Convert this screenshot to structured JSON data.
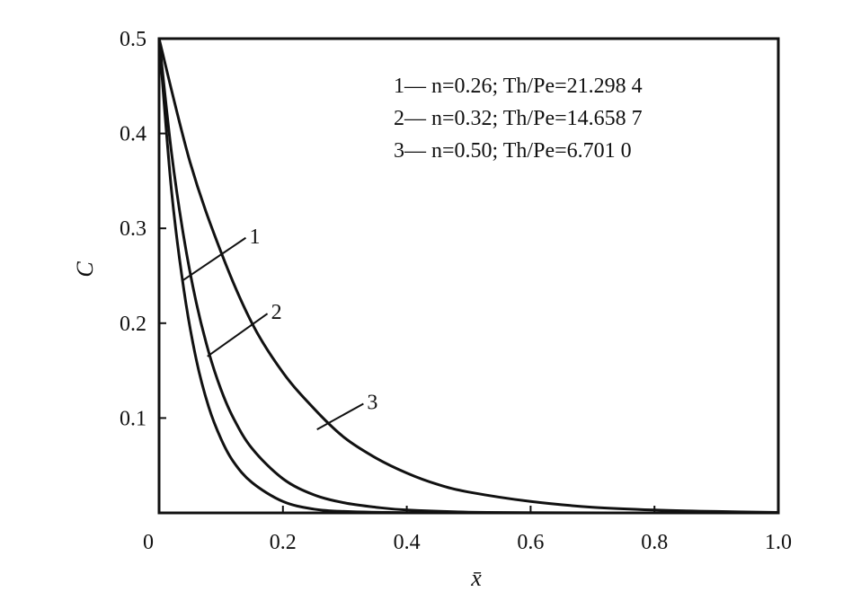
{
  "chart_data": {
    "type": "line",
    "xlabel": "x̄",
    "ylabel": "C",
    "xlim": [
      0,
      1.0
    ],
    "ylim": [
      0,
      0.5
    ],
    "xticks": [
      "0",
      "0.2",
      "0.4",
      "0.6",
      "0.8",
      "1.0"
    ],
    "yticks": [
      "0.1",
      "0.2",
      "0.3",
      "0.4",
      "0.5"
    ],
    "grid": false,
    "legend_position": "top-right",
    "legend": [
      "1— n=0.26; Th/Pe=21.298 4",
      "2— n=0.32; Th/Pe=14.658 7",
      "3— n=0.50; Th/Pe=6.701 0"
    ],
    "series": [
      {
        "name": "1",
        "x": [
          0.0,
          0.02,
          0.04,
          0.06,
          0.08,
          0.1,
          0.12,
          0.15,
          0.2,
          0.25,
          0.3,
          0.4,
          0.6,
          0.8,
          1.0
        ],
        "y": [
          0.5,
          0.34,
          0.235,
          0.162,
          0.112,
          0.078,
          0.054,
          0.032,
          0.012,
          0.004,
          0.0015,
          0.0002,
          0.0,
          0.0,
          0.0
        ]
      },
      {
        "name": "2",
        "x": [
          0.0,
          0.02,
          0.04,
          0.06,
          0.08,
          0.1,
          0.12,
          0.15,
          0.2,
          0.25,
          0.3,
          0.35,
          0.4,
          0.5,
          0.6,
          0.8,
          1.0
        ],
        "y": [
          0.5,
          0.38,
          0.29,
          0.222,
          0.17,
          0.13,
          0.1,
          0.068,
          0.036,
          0.019,
          0.0105,
          0.006,
          0.003,
          0.0008,
          0.0002,
          0.0,
          0.0
        ]
      },
      {
        "name": "3",
        "x": [
          0.0,
          0.05,
          0.1,
          0.15,
          0.2,
          0.25,
          0.3,
          0.35,
          0.4,
          0.45,
          0.5,
          0.6,
          0.7,
          0.8,
          0.9,
          1.0
        ],
        "y": [
          0.5,
          0.37,
          0.275,
          0.2,
          0.148,
          0.11,
          0.079,
          0.058,
          0.042,
          0.03,
          0.022,
          0.012,
          0.006,
          0.003,
          0.0015,
          0.0005
        ]
      }
    ]
  }
}
